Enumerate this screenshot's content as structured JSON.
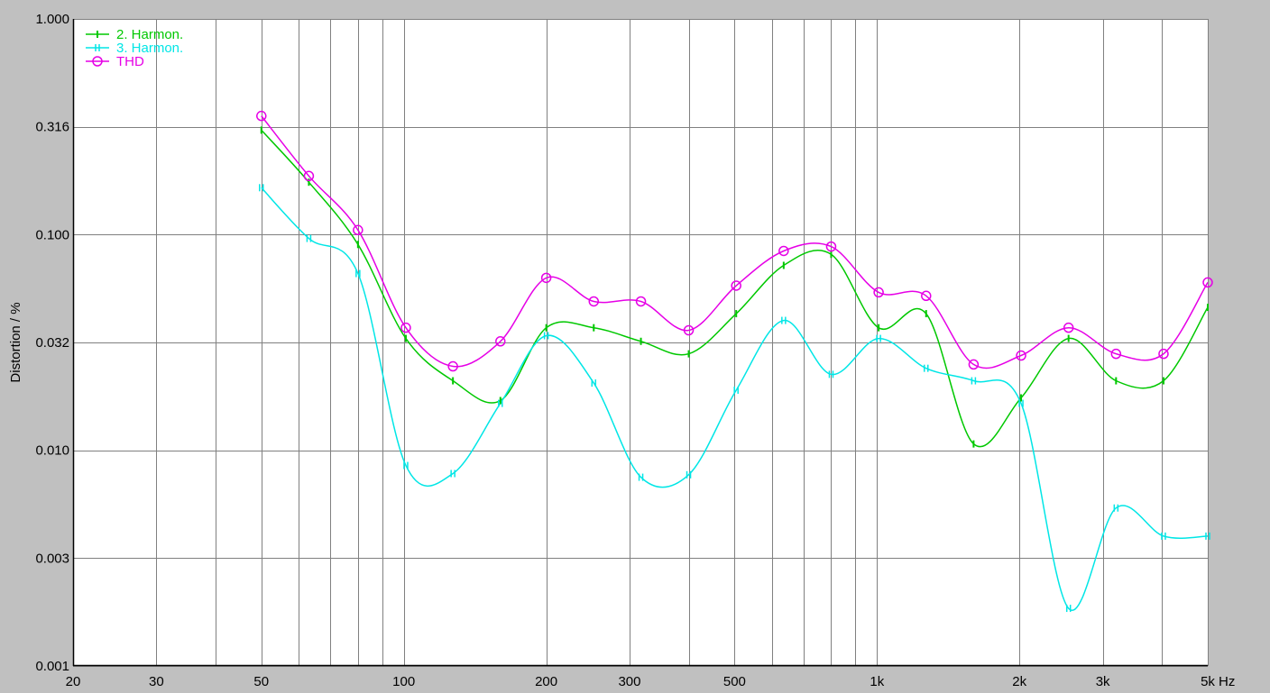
{
  "chart_data": {
    "type": "line",
    "title": "",
    "xlabel": "Hz",
    "ylabel": "Distortion / %",
    "x_scale": "log",
    "y_scale": "log",
    "xlim": [
      20,
      5000
    ],
    "ylim": [
      0.001,
      1.0
    ],
    "grid": true,
    "legend_position": "top-left",
    "x_ticks": [
      {
        "value": 20,
        "label": "20"
      },
      {
        "value": 30,
        "label": "30"
      },
      {
        "value": 50,
        "label": "50"
      },
      {
        "value": 100,
        "label": "100"
      },
      {
        "value": 200,
        "label": "200"
      },
      {
        "value": 300,
        "label": "300"
      },
      {
        "value": 500,
        "label": "500"
      },
      {
        "value": 1000,
        "label": "1k"
      },
      {
        "value": 2000,
        "label": "2k"
      },
      {
        "value": 3000,
        "label": "3k"
      },
      {
        "value": 5000,
        "label": "5k"
      }
    ],
    "y_ticks": [
      {
        "value": 1.0,
        "label": "1.000"
      },
      {
        "value": 0.316,
        "label": "0.316"
      },
      {
        "value": 0.1,
        "label": "0.100"
      },
      {
        "value": 0.0316,
        "label": "0.032"
      },
      {
        "value": 0.01,
        "label": "0.010"
      },
      {
        "value": 0.00316,
        "label": "0.003"
      },
      {
        "value": 0.001,
        "label": "0.001"
      }
    ],
    "colors": {
      "background": "#c0c0c0",
      "plot_background": "#ffffff",
      "grid": "#808080",
      "axis": "#000000"
    },
    "series": [
      {
        "name": "2. Harmon.",
        "color": "#00c800",
        "marker": "tick",
        "x": [
          50,
          63,
          80,
          101,
          127,
          160,
          200,
          252,
          317,
          400,
          504,
          635,
          800,
          1008,
          1270,
          1600,
          2016,
          2540,
          3200,
          4032,
          5000
        ],
        "y": [
          0.31,
          0.185,
          0.09,
          0.033,
          0.021,
          0.016,
          0.033,
          0.039,
          0.033,
          0.0285,
          0.042,
          0.065,
          0.08,
          0.036,
          0.046,
          0.012,
          0.0095,
          0.034,
          0.033,
          0.021,
          0.046
        ],
        "points": [
          [
            50,
            0.305
          ],
          [
            63,
            0.175
          ],
          [
            80,
            0.09
          ],
          [
            101,
            0.033
          ],
          [
            127,
            0.021
          ],
          [
            160,
            0.017
          ],
          [
            200,
            0.037
          ],
          [
            252,
            0.037
          ],
          [
            317,
            0.032
          ],
          [
            400,
            0.028
          ],
          [
            504,
            0.043
          ],
          [
            635,
            0.072
          ],
          [
            800,
            0.081
          ],
          [
            1008,
            0.037
          ],
          [
            1270,
            0.043
          ],
          [
            1600,
            0.0107
          ],
          [
            2016,
            0.0175
          ],
          [
            2540,
            0.033
          ],
          [
            3200,
            0.021
          ],
          [
            4032,
            0.021
          ],
          [
            5000,
            0.046
          ]
        ]
      },
      {
        "name": "3. Harmon.",
        "color": "#00e6e6",
        "marker": "double-tick",
        "points": [
          [
            50,
            0.165
          ],
          [
            63,
            0.096
          ],
          [
            80,
            0.066
          ],
          [
            101,
            0.0085
          ],
          [
            127,
            0.0078
          ],
          [
            160,
            0.0165
          ],
          [
            200,
            0.034
          ],
          [
            252,
            0.0205
          ],
          [
            317,
            0.0075
          ],
          [
            400,
            0.0077
          ],
          [
            504,
            0.019
          ],
          [
            635,
            0.04
          ],
          [
            800,
            0.0225
          ],
          [
            1008,
            0.033
          ],
          [
            1270,
            0.024
          ],
          [
            1600,
            0.021
          ],
          [
            2016,
            0.0165
          ],
          [
            2540,
            0.00185
          ],
          [
            3200,
            0.0054
          ],
          [
            4032,
            0.004
          ],
          [
            5000,
            0.004
          ]
        ]
      },
      {
        "name": "THD",
        "color": "#e600e6",
        "marker": "circle",
        "points": [
          [
            50,
            0.355
          ],
          [
            63,
            0.187
          ],
          [
            80,
            0.105
          ],
          [
            101,
            0.037
          ],
          [
            127,
            0.0245
          ],
          [
            160,
            0.032
          ],
          [
            200,
            0.063
          ],
          [
            252,
            0.049
          ],
          [
            317,
            0.049
          ],
          [
            400,
            0.036
          ],
          [
            504,
            0.058
          ],
          [
            635,
            0.084
          ],
          [
            800,
            0.088
          ],
          [
            1008,
            0.054
          ],
          [
            1270,
            0.052
          ],
          [
            1600,
            0.025
          ],
          [
            2016,
            0.0275
          ],
          [
            2540,
            0.037
          ],
          [
            3200,
            0.028
          ],
          [
            4032,
            0.028
          ],
          [
            5000,
            0.06
          ]
        ]
      }
    ]
  }
}
